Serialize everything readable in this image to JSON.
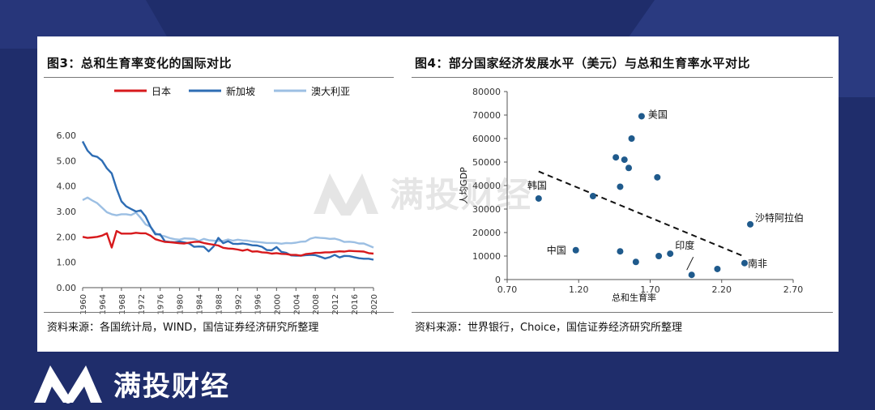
{
  "brand": {
    "name": "满投财经",
    "logo_icon": "brand-m-logo-icon",
    "watermark": "满投财经"
  },
  "colors": {
    "background": "#1f2d6b",
    "japan": "#d7191c",
    "singapore": "#2e6db4",
    "australia": "#9cbfe3",
    "dots": "#1f5a8c"
  },
  "left_panel": {
    "title": "图3：总和生育率变化的国际对比",
    "source": "资料来源：各国统计局，WIND，国信证券经济研究所整理"
  },
  "right_panel": {
    "title": "图4：部分国家经济发展水平（美元）与总和生育率水平对比",
    "source": "资料来源：世界银行，Choice，国信证券经济研究所整理"
  },
  "chart_data": [
    {
      "type": "line",
      "title": "图3：总和生育率变化的国际对比",
      "xlabel": "",
      "ylabel": "",
      "ylim": [
        0,
        6
      ],
      "yticks": [
        "0.00",
        "1.00",
        "2.00",
        "3.00",
        "4.00",
        "5.00",
        "6.00"
      ],
      "xticks": [
        "1960",
        "1964",
        "1968",
        "1972",
        "1976",
        "1980",
        "1984",
        "1988",
        "1992",
        "1996",
        "2000",
        "2004",
        "2008",
        "2012",
        "2016",
        "2020"
      ],
      "legend_position": "top",
      "x": [
        1960,
        1961,
        1962,
        1963,
        1964,
        1965,
        1966,
        1967,
        1968,
        1969,
        1970,
        1971,
        1972,
        1973,
        1974,
        1975,
        1976,
        1977,
        1978,
        1979,
        1980,
        1981,
        1982,
        1983,
        1984,
        1985,
        1986,
        1987,
        1988,
        1989,
        1990,
        1991,
        1992,
        1993,
        1994,
        1995,
        1996,
        1997,
        1998,
        1999,
        2000,
        2001,
        2002,
        2003,
        2004,
        2005,
        2006,
        2007,
        2008,
        2009,
        2010,
        2011,
        2012,
        2013,
        2014,
        2015,
        2016,
        2017,
        2018,
        2019,
        2020
      ],
      "series": [
        {
          "name": "日本",
          "color": "#d7191c",
          "values": [
            2.0,
            1.96,
            1.98,
            2.0,
            2.05,
            2.14,
            1.58,
            2.23,
            2.13,
            2.13,
            2.13,
            2.16,
            2.14,
            2.14,
            2.05,
            1.91,
            1.85,
            1.8,
            1.79,
            1.77,
            1.75,
            1.74,
            1.77,
            1.8,
            1.81,
            1.76,
            1.72,
            1.69,
            1.66,
            1.57,
            1.54,
            1.53,
            1.5,
            1.46,
            1.5,
            1.42,
            1.43,
            1.39,
            1.38,
            1.34,
            1.36,
            1.33,
            1.32,
            1.29,
            1.29,
            1.26,
            1.32,
            1.34,
            1.37,
            1.37,
            1.39,
            1.39,
            1.41,
            1.43,
            1.42,
            1.45,
            1.44,
            1.43,
            1.42,
            1.36,
            1.34
          ]
        },
        {
          "name": "新加坡",
          "color": "#2e6db4",
          "values": [
            5.76,
            5.4,
            5.2,
            5.15,
            5.0,
            4.7,
            4.5,
            3.9,
            3.4,
            3.2,
            3.1,
            3.0,
            3.04,
            2.8,
            2.4,
            2.1,
            2.1,
            1.82,
            1.8,
            1.79,
            1.82,
            1.78,
            1.74,
            1.61,
            1.62,
            1.61,
            1.43,
            1.62,
            1.96,
            1.75,
            1.83,
            1.73,
            1.72,
            1.74,
            1.71,
            1.67,
            1.66,
            1.61,
            1.48,
            1.47,
            1.6,
            1.41,
            1.37,
            1.27,
            1.26,
            1.26,
            1.28,
            1.29,
            1.28,
            1.22,
            1.15,
            1.2,
            1.29,
            1.19,
            1.25,
            1.24,
            1.2,
            1.16,
            1.14,
            1.14,
            1.1
          ]
        },
        {
          "name": "澳大利亚",
          "color": "#9cbfe3",
          "values": [
            3.45,
            3.55,
            3.43,
            3.33,
            3.15,
            2.97,
            2.89,
            2.85,
            2.89,
            2.89,
            2.86,
            2.96,
            2.74,
            2.49,
            2.4,
            2.15,
            2.06,
            2.02,
            1.95,
            1.91,
            1.89,
            1.94,
            1.93,
            1.92,
            1.84,
            1.92,
            1.87,
            1.85,
            1.84,
            1.84,
            1.9,
            1.85,
            1.89,
            1.86,
            1.85,
            1.82,
            1.8,
            1.78,
            1.76,
            1.76,
            1.76,
            1.73,
            1.76,
            1.75,
            1.77,
            1.81,
            1.82,
            1.93,
            1.98,
            1.96,
            1.95,
            1.92,
            1.93,
            1.88,
            1.8,
            1.81,
            1.79,
            1.74,
            1.74,
            1.66,
            1.58
          ]
        }
      ]
    },
    {
      "type": "scatter",
      "title": "图4：部分国家经济发展水平（美元）与总和生育率水平对比",
      "xlabel": "总和生育率",
      "ylabel": "人均GDP",
      "xlim": [
        0.7,
        2.7
      ],
      "ylim": [
        0,
        80000
      ],
      "xticks": [
        "0.70",
        "1.20",
        "1.70",
        "2.20",
        "2.70"
      ],
      "yticks": [
        "0",
        "10000",
        "20000",
        "30000",
        "40000",
        "50000",
        "60000",
        "70000",
        "80000"
      ],
      "trendline": {
        "style": "dashed",
        "from": [
          0.92,
          46000
        ],
        "to": [
          2.35,
          10000
        ]
      },
      "points": [
        {
          "x": 0.92,
          "y": 34500,
          "label": "韩国"
        },
        {
          "x": 1.18,
          "y": 12500,
          "label": "中国"
        },
        {
          "x": 1.3,
          "y": 35500,
          "label": ""
        },
        {
          "x": 1.46,
          "y": 52000,
          "label": ""
        },
        {
          "x": 1.49,
          "y": 12000,
          "label": ""
        },
        {
          "x": 1.49,
          "y": 39500,
          "label": ""
        },
        {
          "x": 1.52,
          "y": 51000,
          "label": ""
        },
        {
          "x": 1.55,
          "y": 47500,
          "label": ""
        },
        {
          "x": 1.57,
          "y": 60000,
          "label": ""
        },
        {
          "x": 1.6,
          "y": 7500,
          "label": ""
        },
        {
          "x": 1.64,
          "y": 69500,
          "label": "美国"
        },
        {
          "x": 1.75,
          "y": 43500,
          "label": ""
        },
        {
          "x": 1.76,
          "y": 10000,
          "label": ""
        },
        {
          "x": 1.84,
          "y": 11000,
          "label": "印度"
        },
        {
          "x": 1.99,
          "y": 2000,
          "label": ""
        },
        {
          "x": 2.17,
          "y": 4500,
          "label": ""
        },
        {
          "x": 2.36,
          "y": 7000,
          "label": "南非"
        },
        {
          "x": 2.4,
          "y": 23500,
          "label": "沙特阿拉伯"
        }
      ]
    }
  ]
}
